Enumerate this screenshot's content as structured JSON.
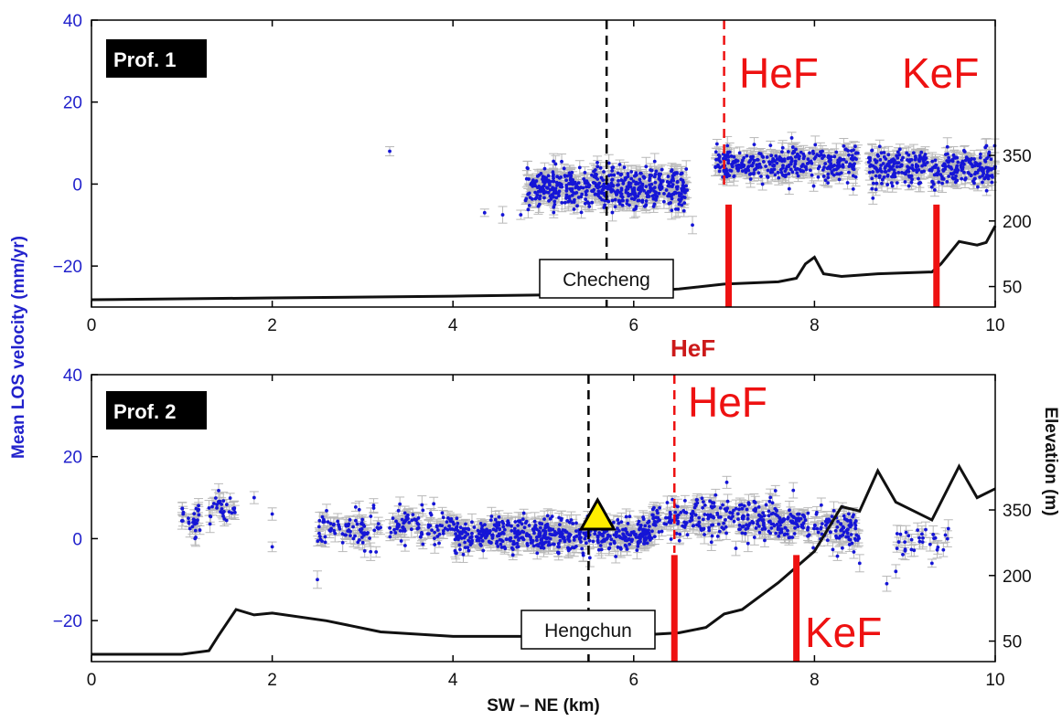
{
  "figure": {
    "ylabel": "Mean LOS velocity (mm/yr)",
    "right_label": "Elevation (m)",
    "xlabel": "SW – NE (km)"
  },
  "colors": {
    "points": "#1515d6",
    "errorbars": "#b8b8b8",
    "fault": "#ee1111",
    "profile": "#111111",
    "triangle": "#ffee00"
  },
  "chart_data": [
    {
      "type": "scatter",
      "panel": "Prof. 1",
      "xlim": [
        0,
        10
      ],
      "ylim": [
        -30,
        40
      ],
      "x_ticks": [
        0,
        2,
        4,
        6,
        8,
        10
      ],
      "y_ticks": [
        -20,
        0,
        20,
        40
      ],
      "elevation_ticks": [
        50,
        200,
        350
      ],
      "elevation_ticks_at_velocity": [
        -25,
        -9,
        7
      ],
      "station": {
        "name": "Checheng",
        "x": 5.7
      },
      "faults": [
        {
          "label": "HeF",
          "x_top": 7.0,
          "x_base": 7.05
        },
        {
          "label": "KeF",
          "x_top": 9.3,
          "x_base": 9.35
        }
      ],
      "clusters": [
        {
          "x_range": [
            4.8,
            6.6
          ],
          "y_center": -1,
          "y_spread": 3.5,
          "count": 520
        },
        {
          "x_range": [
            6.9,
            8.5
          ],
          "y_center": 5,
          "y_spread": 3.2,
          "count": 320
        },
        {
          "x_range": [
            8.6,
            10.0
          ],
          "y_center": 4,
          "y_spread": 3.2,
          "count": 320
        }
      ],
      "isolated_points": [
        [
          3.3,
          8
        ],
        [
          4.35,
          -7
        ],
        [
          4.55,
          -7.5
        ],
        [
          4.75,
          -7.5
        ],
        [
          6.65,
          -10
        ]
      ],
      "elevation_profile": [
        [
          0,
          0
        ],
        [
          2,
          4
        ],
        [
          4,
          8
        ],
        [
          5.5,
          12
        ],
        [
          6.5,
          24
        ],
        [
          7.0,
          35
        ],
        [
          7.6,
          40
        ],
        [
          7.8,
          48
        ],
        [
          7.9,
          80
        ],
        [
          8.0,
          95
        ],
        [
          8.1,
          58
        ],
        [
          8.3,
          52
        ],
        [
          8.7,
          58
        ],
        [
          9.3,
          62
        ],
        [
          9.4,
          80
        ],
        [
          9.6,
          130
        ],
        [
          9.8,
          122
        ],
        [
          9.9,
          128
        ],
        [
          10.0,
          165
        ]
      ]
    },
    {
      "type": "scatter",
      "panel": "Prof. 2",
      "xlim": [
        0,
        10
      ],
      "ylim": [
        -30,
        40
      ],
      "x_ticks": [
        0,
        2,
        4,
        6,
        8,
        10
      ],
      "y_ticks": [
        -20,
        0,
        20,
        40
      ],
      "elevation_ticks": [
        50,
        200,
        350
      ],
      "elevation_ticks_at_velocity": [
        -25,
        -9,
        7
      ],
      "station": {
        "name": "Hengchun",
        "x": 5.5
      },
      "gps_triangle": {
        "x": 5.6,
        "y": 5
      },
      "faults": [
        {
          "label": "HeF",
          "x_top": 6.45,
          "x_base": 6.45,
          "bold_label": "HeF"
        },
        {
          "label": "KeF",
          "x_top": 7.75,
          "x_base": 7.8
        }
      ],
      "clusters": [
        {
          "x_range": [
            1.0,
            1.2
          ],
          "y_center": 5,
          "y_spread": 3,
          "count": 30
        },
        {
          "x_range": [
            1.3,
            1.6
          ],
          "y_center": 7,
          "y_spread": 3,
          "count": 30
        },
        {
          "x_range": [
            2.5,
            3.2
          ],
          "y_center": 2,
          "y_spread": 3,
          "count": 80
        },
        {
          "x_range": [
            3.3,
            4.0
          ],
          "y_center": 3,
          "y_spread": 3,
          "count": 90
        },
        {
          "x_range": [
            4.0,
            6.2
          ],
          "y_center": 1,
          "y_spread": 3,
          "count": 520
        },
        {
          "x_range": [
            6.2,
            7.6
          ],
          "y_center": 5,
          "y_spread": 3.5,
          "count": 230
        },
        {
          "x_range": [
            7.6,
            8.5
          ],
          "y_center": 3,
          "y_spread": 3.5,
          "count": 150
        },
        {
          "x_range": [
            8.9,
            9.5
          ],
          "y_center": -1,
          "y_spread": 2.5,
          "count": 30
        }
      ],
      "isolated_points": [
        [
          1.8,
          10
        ],
        [
          2.0,
          6
        ],
        [
          2.0,
          -2
        ],
        [
          2.5,
          -10
        ],
        [
          8.5,
          -6
        ],
        [
          8.8,
          -11
        ],
        [
          8.9,
          -8
        ],
        [
          9.3,
          -6
        ]
      ],
      "elevation_profile": [
        [
          0,
          0
        ],
        [
          1.0,
          0
        ],
        [
          1.3,
          8
        ],
        [
          1.4,
          40
        ],
        [
          1.6,
          100
        ],
        [
          1.8,
          88
        ],
        [
          2.0,
          92
        ],
        [
          2.6,
          75
        ],
        [
          3.2,
          50
        ],
        [
          4.0,
          40
        ],
        [
          5.0,
          40
        ],
        [
          6.0,
          42
        ],
        [
          6.5,
          48
        ],
        [
          6.8,
          60
        ],
        [
          7.0,
          90
        ],
        [
          7.2,
          100
        ],
        [
          7.6,
          160
        ],
        [
          8.0,
          230
        ],
        [
          8.3,
          330
        ],
        [
          8.5,
          320
        ],
        [
          8.7,
          410
        ],
        [
          8.9,
          340
        ],
        [
          9.3,
          300
        ],
        [
          9.6,
          420
        ],
        [
          9.8,
          350
        ],
        [
          10.0,
          370
        ]
      ]
    }
  ]
}
